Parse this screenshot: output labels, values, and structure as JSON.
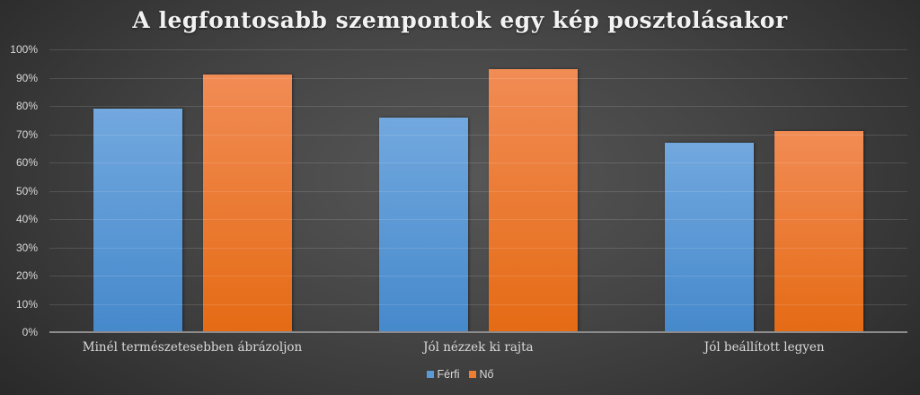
{
  "chart_data": {
    "type": "bar",
    "title": "A legfontosabb szempontok egy kép posztolásakor",
    "categories": [
      "Minél természetesebben ábrázoljon",
      "Jól nézzek ki rajta",
      "Jól beállított legyen"
    ],
    "series": [
      {
        "name": "Férfi",
        "color": "#5B9BD5",
        "values": [
          79,
          76,
          67
        ]
      },
      {
        "name": "Nő",
        "color": "#ED7D31",
        "values": [
          91,
          93,
          71
        ]
      }
    ],
    "xlabel": "",
    "ylabel": "",
    "ylim": [
      0,
      100
    ],
    "yticks": [
      "0%",
      "10%",
      "20%",
      "30%",
      "40%",
      "50%",
      "60%",
      "70%",
      "80%",
      "90%",
      "100%"
    ],
    "value_format": "percent",
    "grid": true,
    "legend_position": "bottom"
  }
}
